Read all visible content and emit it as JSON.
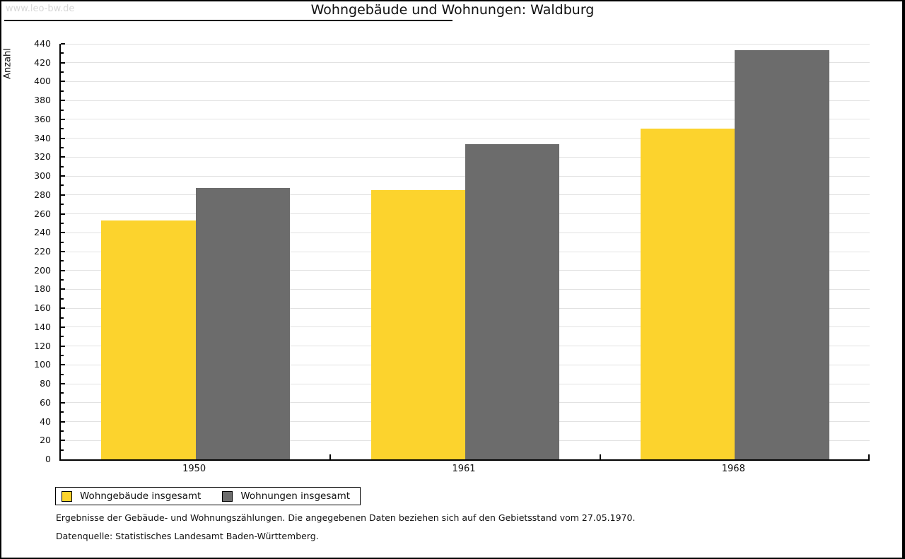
{
  "watermark": "www.leo-bw.de",
  "title": "Wohngebäude und Wohnungen: Waldburg",
  "chart_data": {
    "type": "bar",
    "title": "Wohngebäude und Wohnungen: Waldburg",
    "categories": [
      "1950",
      "1961",
      "1968"
    ],
    "series": [
      {
        "name": "Wohngebäude insgesamt",
        "color": "#FCD32D",
        "values": [
          253,
          285,
          350
        ]
      },
      {
        "name": "Wohnungen insgesamt",
        "color": "#6C6C6C",
        "values": [
          287,
          334,
          433
        ]
      }
    ],
    "xlabel": "",
    "ylabel": "Anzahl",
    "ylim": [
      0,
      440
    ],
    "ytick_step": 20,
    "minor_tick_step": 10,
    "grid": true,
    "gridline_color": "#e2e2e2",
    "legend_position": "bottom-left"
  },
  "footnotes": [
    "Ergebnisse der Gebäude- und Wohnungszählungen. Die angegebenen Daten beziehen sich auf den Gebietsstand vom 27.05.1970.",
    "Datenquelle: Statistisches Landesamt Baden-Württemberg."
  ]
}
